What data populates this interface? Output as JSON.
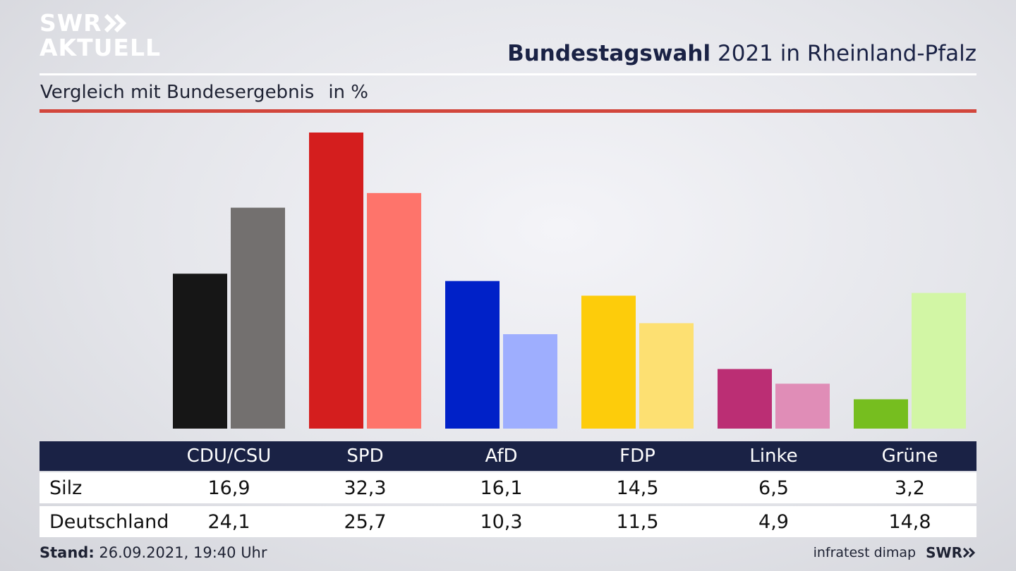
{
  "header": {
    "logo_line1": "SWR",
    "logo_line2": "AKTUELL",
    "title_bold": "Bundestagswahl",
    "title_rest": "2021 in Rheinland-Pfalz",
    "subtitle": "Vergleich mit Bundesergebnis",
    "unit": "in %"
  },
  "colors": {
    "header_bar": "#1a2245",
    "accent_rule": "#d2463c"
  },
  "chart_data": {
    "type": "bar",
    "categories": [
      "CDU/CSU",
      "SPD",
      "AfD",
      "FDP",
      "Linke",
      "Grüne"
    ],
    "series": [
      {
        "name": "Silz",
        "values": [
          16.9,
          32.3,
          16.1,
          14.5,
          6.5,
          3.2
        ],
        "colors": [
          "#161616",
          "#d41e1e",
          "#0021c8",
          "#fdcc0b",
          "#bb2e74",
          "#76be1f"
        ]
      },
      {
        "name": "Deutschland",
        "values": [
          24.1,
          25.7,
          10.3,
          11.5,
          4.9,
          14.8
        ],
        "colors": [
          "#73706f",
          "#fe746b",
          "#9eaefe",
          "#fde072",
          "#e08db7",
          "#d2f6a5"
        ]
      }
    ],
    "ylim": [
      0,
      32.3
    ]
  },
  "table": {
    "headers": [
      "CDU/CSU",
      "SPD",
      "AfD",
      "FDP",
      "Linke",
      "Grüne"
    ],
    "rows": [
      {
        "label": "Silz",
        "values": [
          "16,9",
          "32,3",
          "16,1",
          "14,5",
          "6,5",
          "3,2"
        ]
      },
      {
        "label": "Deutschland",
        "values": [
          "24,1",
          "25,7",
          "10,3",
          "11,5",
          "4,9",
          "14,8"
        ]
      }
    ]
  },
  "footer": {
    "stand_label": "Stand:",
    "stand_value": "26.09.2021, 19:40 Uhr",
    "source": "infratest dimap",
    "brand": "SWR"
  }
}
